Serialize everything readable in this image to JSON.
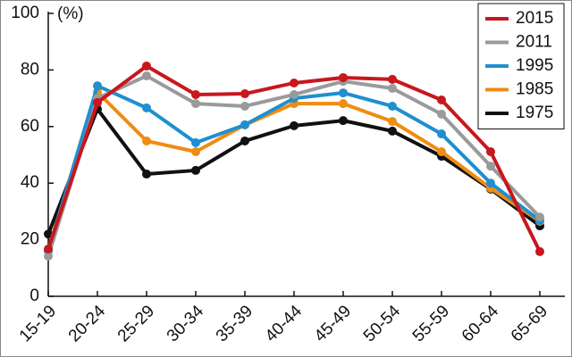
{
  "chart_data": {
    "type": "line",
    "y_label": "(%)",
    "categories": [
      "15-19",
      "20-24",
      "25-29",
      "30-34",
      "35-39",
      "40-44",
      "45-49",
      "50-54",
      "55-59",
      "60-64",
      "65-69"
    ],
    "series": [
      {
        "name": "2015",
        "color": "#c8171e",
        "values": [
          16.7,
          68.5,
          81.4,
          71.3,
          71.6,
          75.4,
          77.3,
          76.7,
          69.4,
          51.1,
          15.8
        ]
      },
      {
        "name": "2011",
        "color": "#9a9a9a",
        "values": [
          14.2,
          70,
          77.9,
          68.1,
          67.2,
          71.3,
          76,
          73.5,
          64.4,
          46,
          28
        ]
      },
      {
        "name": "1995",
        "color": "#1f8fd0",
        "values": [
          16,
          74.4,
          66.6,
          54.3,
          60.6,
          70,
          71.9,
          67.2,
          57.4,
          40,
          26.8
        ]
      },
      {
        "name": "1985",
        "color": "#ef8c12",
        "values": [
          16.6,
          72.2,
          54.9,
          51.1,
          60.6,
          68.1,
          68.1,
          61.8,
          51.1,
          38.2,
          26.5
        ]
      },
      {
        "name": "1975",
        "color": "#111111",
        "values": [
          22,
          66.2,
          43.2,
          44.5,
          54.9,
          60.3,
          62.1,
          58.4,
          49.5,
          37.9,
          24.9
        ]
      }
    ],
    "ylim": [
      0,
      100
    ],
    "yticks": [
      0,
      20,
      40,
      60,
      80,
      100
    ],
    "legend": "upper right"
  }
}
